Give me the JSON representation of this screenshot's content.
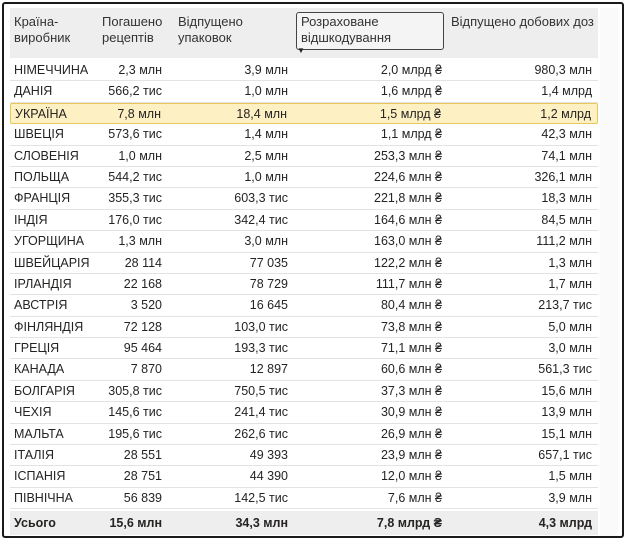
{
  "columns": {
    "country": [
      "Країна-",
      "виробник"
    ],
    "prescriptions": [
      "Погашено",
      "рецептів"
    ],
    "packages": [
      "Відпущено",
      "упаковок"
    ],
    "reimbursement": [
      "Розраховане",
      "відшкодування"
    ],
    "doses": "Відпущено добових доз"
  },
  "rows": [
    {
      "country": "НІМЕЧЧИНА",
      "prescriptions": "2,3 млн",
      "packages": "3,9 млн",
      "reimbursement": "2,0 млрд ₴",
      "doses": "980,3 млн"
    },
    {
      "country": "ДАНІЯ",
      "prescriptions": "566,2 тис",
      "packages": "1,0 млн",
      "reimbursement": "1,6 млрд ₴",
      "doses": "1,4 млрд"
    },
    {
      "country": "УКРАЇНА",
      "prescriptions": "7,8 млн",
      "packages": "18,4 млн",
      "reimbursement": "1,5 млрд ₴",
      "doses": "1,2 млрд"
    },
    {
      "country": "ШВЕЦІЯ",
      "prescriptions": "573,6 тис",
      "packages": "1,4 млн",
      "reimbursement": "1,1 млрд ₴",
      "doses": "42,3 млн"
    },
    {
      "country": "СЛОВЕНІЯ",
      "prescriptions": "1,0 млн",
      "packages": "2,5 млн",
      "reimbursement": "253,3 млн ₴",
      "doses": "74,1 млн"
    },
    {
      "country": "ПОЛЬЩА",
      "prescriptions": "544,2 тис",
      "packages": "1,0 млн",
      "reimbursement": "224,6 млн ₴",
      "doses": "326,1 млн"
    },
    {
      "country": "ФРАНЦІЯ",
      "prescriptions": "355,3 тис",
      "packages": "603,3 тис",
      "reimbursement": "221,8 млн ₴",
      "doses": "18,3 млн"
    },
    {
      "country": "ІНДІЯ",
      "prescriptions": "176,0 тис",
      "packages": "342,4 тис",
      "reimbursement": "164,6 млн ₴",
      "doses": "84,5 млн"
    },
    {
      "country": "УГОРЩИНА",
      "prescriptions": "1,3 млн",
      "packages": "3,0 млн",
      "reimbursement": "163,0 млн ₴",
      "doses": "111,2 млн"
    },
    {
      "country": "ШВЕЙЦАРІЯ",
      "prescriptions": "28 114",
      "packages": "77 035",
      "reimbursement": "122,2 млн ₴",
      "doses": "1,3 млн"
    },
    {
      "country": "ІРЛАНДІЯ",
      "prescriptions": "22 168",
      "packages": "78 729",
      "reimbursement": "111,7 млн ₴",
      "doses": "1,7 млн"
    },
    {
      "country": "АВСТРІЯ",
      "prescriptions": "3 520",
      "packages": "16 645",
      "reimbursement": "80,4 млн ₴",
      "doses": "213,7 тис"
    },
    {
      "country": "ФІНЛЯНДІЯ",
      "prescriptions": "72 128",
      "packages": "103,0 тис",
      "reimbursement": "73,8 млн ₴",
      "doses": "5,0 млн"
    },
    {
      "country": "ГРЕЦІЯ",
      "prescriptions": "95 464",
      "packages": "193,3 тис",
      "reimbursement": "71,1 млн ₴",
      "doses": "3,0 млн"
    },
    {
      "country": "КАНАДА",
      "prescriptions": "7 870",
      "packages": "12 897",
      "reimbursement": "60,6 млн ₴",
      "doses": "561,3 тис"
    },
    {
      "country": "БОЛГАРІЯ",
      "prescriptions": "305,8 тис",
      "packages": "750,5 тис",
      "reimbursement": "37,3 млн ₴",
      "doses": "15,6 млн"
    },
    {
      "country": "ЧЕХІЯ",
      "prescriptions": "145,6 тис",
      "packages": "241,4 тис",
      "reimbursement": "30,9 млн ₴",
      "doses": "13,9 млн"
    },
    {
      "country": "МАЛЬТА",
      "prescriptions": "195,6 тис",
      "packages": "262,6 тис",
      "reimbursement": "26,9 млн ₴",
      "doses": "15,1 млн"
    },
    {
      "country": "ІТАЛІЯ",
      "prescriptions": "28 551",
      "packages": "49 393",
      "reimbursement": "23,9 млн ₴",
      "doses": "657,1 тис"
    },
    {
      "country": "ІСПАНІЯ",
      "prescriptions": "28 751",
      "packages": "44 390",
      "reimbursement": "12,0 млн ₴",
      "doses": "1,5 млн"
    },
    {
      "country": "ПІВНІЧНА",
      "prescriptions": "56 839",
      "packages": "142,5 тис",
      "reimbursement": "7,6 млн ₴",
      "doses": "3,9 млн"
    }
  ],
  "highlighted_row": "УКРАЇНА",
  "total": {
    "label": "Усього",
    "prescriptions": "15,6 млн",
    "packages": "34,3 млн",
    "reimbursement": "7,8 млрд ₴",
    "doses": "4,3 млрд"
  },
  "sort": {
    "column": "reimbursement",
    "direction": "descending",
    "icon": "sort-descending-icon"
  },
  "colors": {
    "highlight_bg": "#fdf1c4",
    "highlight_border": "#e8c65a",
    "header_bg": "#eeeeee"
  }
}
